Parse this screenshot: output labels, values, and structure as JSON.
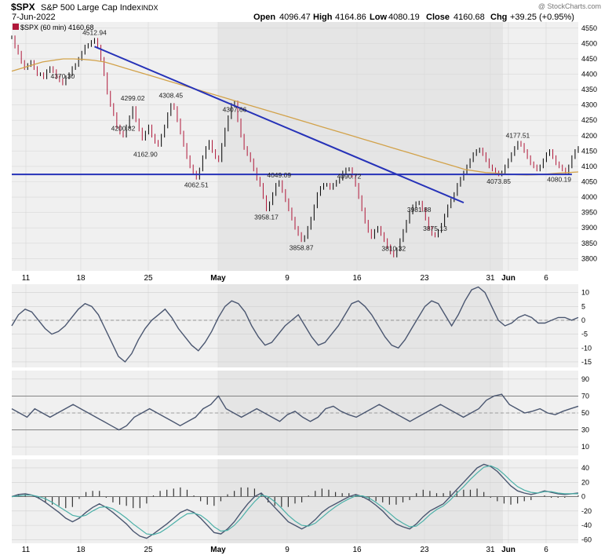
{
  "header": {
    "ticker": "$SPX",
    "name": "S&P 500 Large Cap Index",
    "exchange": "INDX",
    "date": "7-Jun-2022",
    "watermark": "@ StockCharts.com",
    "open_label": "Open",
    "open": "4096.47",
    "high_label": "High",
    "high": "4164.86",
    "low_label": "Low",
    "low": "4080.19",
    "close_label": "Close",
    "close": "4160.68",
    "chg_label": "Chg",
    "chg": "+39.25 (+0.95%)"
  },
  "legend": "$SPX (60 min) 4160.68",
  "colors": {
    "price": "#b0183a",
    "sma": "#d2a24a",
    "trend": "#2632b8",
    "osc": "#4a5670",
    "signal": "#4bb0a8",
    "weekend_shade": "#e5e5e5",
    "bg_shade": "#f0f0f0"
  },
  "chart_data": [
    {
      "type": "line",
      "title": "$SPX (60 min)",
      "ylim": [
        3760,
        4570
      ],
      "x_ticks": [
        "11",
        "18",
        "25",
        "May",
        "9",
        "16",
        "23",
        "31",
        "Jun",
        "6"
      ],
      "y_ticks": [
        4550,
        4500,
        4450,
        4400,
        4350,
        4300,
        4250,
        4200,
        4150,
        4100,
        4050,
        4000,
        3950,
        3900,
        3850,
        3800
      ],
      "series": [
        {
          "values": [
            4520,
            4490,
            4470,
            4440,
            4420,
            4430,
            4440,
            4420,
            4400,
            4400,
            4390,
            4410,
            4420,
            4410,
            4390,
            4380,
            4370,
            4390,
            4400,
            4420,
            4430,
            4450,
            4470,
            4490,
            4495,
            4505,
            4512,
            4490,
            4450,
            4400,
            4340,
            4300,
            4270,
            4230,
            4210,
            4200,
            4230,
            4260,
            4290,
            4250,
            4220,
            4190,
            4210,
            4230,
            4200,
            4180,
            4170,
            4200,
            4230,
            4270,
            4300,
            4290,
            4250,
            4210,
            4170,
            4130,
            4100,
            4080,
            4063,
            4090,
            4130,
            4160,
            4180,
            4150,
            4130,
            4120,
            4170,
            4220,
            4260,
            4300,
            4308,
            4250,
            4200,
            4160,
            4140,
            4120,
            4090,
            4060,
            4040,
            4000,
            3960,
            3980,
            4010,
            4040,
            4049,
            4020,
            3990,
            3960,
            3930,
            3900,
            3880,
            3860,
            3870,
            3900,
            3930,
            3970,
            4010,
            4030,
            4040,
            4040,
            4030,
            4040,
            4050,
            4060,
            4080,
            4090,
            4091,
            4070,
            4040,
            4000,
            3960,
            3920,
            3890,
            3870,
            3890,
            3900,
            3880,
            3860,
            3840,
            3820,
            3810,
            3830,
            3860,
            3890,
            3920,
            3950,
            3970,
            3980,
            3982,
            3960,
            3930,
            3900,
            3880,
            3875,
            3890,
            3910,
            3940,
            3970,
            3990,
            4010,
            4040,
            4060,
            4080,
            4100,
            4120,
            4140,
            4150,
            4155,
            4140,
            4120,
            4100,
            4090,
            4080,
            4074,
            4080,
            4100,
            4120,
            4140,
            4160,
            4177,
            4170,
            4150,
            4130,
            4110,
            4100,
            4090,
            4100,
            4120,
            4140,
            4150,
            4130,
            4110,
            4100,
            4090,
            4080,
            4100,
            4130,
            4150,
            4160
          ]
        },
        {
          "name": "SMA",
          "values": [
            4410,
            4420,
            4430,
            4440,
            4445,
            4450,
            4450,
            4448,
            4445,
            4440,
            4430,
            4420,
            4410,
            4400,
            4390,
            4380,
            4370,
            4360,
            4350,
            4340,
            4330,
            4320,
            4310,
            4300,
            4290,
            4280,
            4270,
            4260,
            4250,
            4240,
            4230,
            4220,
            4210,
            4200,
            4190,
            4180,
            4170,
            4160,
            4150,
            4140,
            4130,
            4120,
            4110,
            4100,
            4090,
            4085,
            4080,
            4078,
            4075,
            4073,
            4072,
            4073,
            4075,
            4078,
            4080,
            4082
          ]
        }
      ],
      "trendlines": [
        {
          "from": [
            26,
            4490
          ],
          "to": [
            142,
            3982
          ]
        },
        {
          "from": [
            0,
            4074
          ],
          "to": [
            176,
            4074
          ]
        }
      ],
      "annotations": [
        {
          "text": "4512.94",
          "x": 26,
          "y": 4512.94
        },
        {
          "text": "4370.30",
          "x": 16,
          "y": 4370.3
        },
        {
          "text": "4299.02",
          "x": 38,
          "y": 4299.02
        },
        {
          "text": "4200.82",
          "x": 35,
          "y": 4200.82
        },
        {
          "text": "4308.45",
          "x": 50,
          "y": 4308.45
        },
        {
          "text": "4162.90",
          "x": 42,
          "y": 4162.9
        },
        {
          "text": "4307.66",
          "x": 70,
          "y": 4307.66
        },
        {
          "text": "4062.51",
          "x": 58,
          "y": 4062.51
        },
        {
          "text": "4049.09",
          "x": 84,
          "y": 4049.09
        },
        {
          "text": "3958.17",
          "x": 80,
          "y": 3958.17
        },
        {
          "text": "3858.87",
          "x": 91,
          "y": 3858.87
        },
        {
          "text": "4090.72",
          "x": 106,
          "y": 4090.72
        },
        {
          "text": "3810.32",
          "x": 120,
          "y": 3810.32
        },
        {
          "text": "3981.88",
          "x": 128,
          "y": 3981.88
        },
        {
          "text": "3875.13",
          "x": 133,
          "y": 3875.13
        },
        {
          "text": "4073.85",
          "x": 153,
          "y": 4073.85
        },
        {
          "text": "4177.51",
          "x": 159,
          "y": 4177.51
        },
        {
          "text": "4080.19",
          "x": 172,
          "y": 4080.19
        }
      ]
    },
    {
      "type": "line",
      "ylim": [
        -17,
        13
      ],
      "y_ticks": [
        10,
        5,
        0,
        -5,
        -10,
        -15
      ],
      "series": [
        {
          "values": [
            -2,
            2,
            4,
            3,
            0,
            -3,
            -5,
            -4,
            -2,
            1,
            4,
            6,
            5,
            2,
            -3,
            -8,
            -13,
            -15,
            -12,
            -7,
            -3,
            0,
            2,
            4,
            1,
            -3,
            -6,
            -9,
            -11,
            -8,
            -4,
            1,
            5,
            7,
            6,
            3,
            -2,
            -6,
            -9,
            -8,
            -5,
            -2,
            0,
            2,
            -2,
            -6,
            -9,
            -8,
            -5,
            -2,
            2,
            6,
            7,
            5,
            2,
            -2,
            -6,
            -9,
            -10,
            -7,
            -3,
            1,
            5,
            7,
            6,
            2,
            -2,
            2,
            7,
            11,
            12,
            10,
            5,
            0,
            -2,
            -1,
            1,
            2,
            1,
            -1,
            -1,
            0,
            1,
            1,
            0,
            1
          ]
        }
      ]
    },
    {
      "type": "line",
      "ylim": [
        0,
        100
      ],
      "y_ticks": [
        90,
        70,
        50,
        30,
        10
      ],
      "series": [
        {
          "values": [
            55,
            50,
            45,
            55,
            50,
            45,
            50,
            55,
            60,
            55,
            50,
            45,
            40,
            35,
            30,
            35,
            45,
            50,
            55,
            50,
            45,
            40,
            35,
            40,
            45,
            55,
            60,
            70,
            55,
            50,
            45,
            50,
            55,
            50,
            45,
            40,
            48,
            52,
            45,
            40,
            45,
            55,
            58,
            52,
            48,
            45,
            50,
            55,
            60,
            55,
            50,
            45,
            40,
            45,
            50,
            55,
            60,
            55,
            50,
            45,
            50,
            55,
            65,
            70,
            72,
            60,
            55,
            50,
            52,
            55,
            50,
            48,
            52,
            55,
            58
          ]
        }
      ]
    },
    {
      "type": "bar",
      "ylim": [
        -65,
        52
      ],
      "y_ticks": [
        40,
        20,
        0,
        -20,
        -40,
        -60
      ],
      "series": [
        {
          "name": "MACD",
          "values": [
            0,
            3,
            4,
            2,
            -2,
            -8,
            -15,
            -22,
            -30,
            -35,
            -30,
            -22,
            -15,
            -10,
            -15,
            -22,
            -30,
            -38,
            -48,
            -55,
            -58,
            -52,
            -45,
            -38,
            -30,
            -22,
            -18,
            -22,
            -30,
            -40,
            -50,
            -52,
            -45,
            -35,
            -22,
            -10,
            0,
            5,
            -5,
            -15,
            -25,
            -35,
            -40,
            -45,
            -40,
            -32,
            -22,
            -15,
            -10,
            -5,
            0,
            3,
            0,
            -5,
            -12,
            -20,
            -30,
            -38,
            -42,
            -45,
            -38,
            -28,
            -20,
            -15,
            -10,
            0,
            10,
            20,
            30,
            40,
            45,
            42,
            35,
            25,
            15,
            8,
            5,
            3,
            5,
            8,
            6,
            4,
            3,
            4,
            5
          ]
        },
        {
          "name": "Signal",
          "values": [
            0,
            1,
            2,
            2,
            0,
            -3,
            -8,
            -14,
            -20,
            -26,
            -28,
            -26,
            -20,
            -15,
            -14,
            -17,
            -23,
            -30,
            -38,
            -45,
            -52,
            -53,
            -50,
            -44,
            -37,
            -30,
            -24,
            -23,
            -26,
            -33,
            -42,
            -48,
            -47,
            -40,
            -30,
            -18,
            -7,
            2,
            0,
            -7,
            -16,
            -26,
            -34,
            -40,
            -41,
            -37,
            -29,
            -21,
            -14,
            -8,
            -3,
            1,
            1,
            -2,
            -8,
            -15,
            -23,
            -31,
            -37,
            -42,
            -41,
            -34,
            -25,
            -18,
            -13,
            -5,
            5,
            14,
            24,
            33,
            41,
            43,
            39,
            31,
            22,
            14,
            9,
            6,
            5,
            7,
            7,
            5,
            4,
            4,
            4
          ]
        }
      ]
    }
  ]
}
